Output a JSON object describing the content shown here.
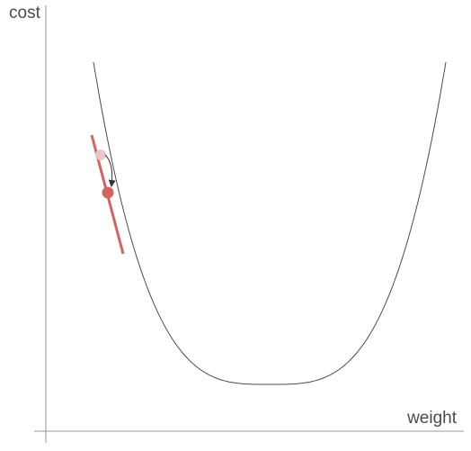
{
  "diagram": {
    "axes": {
      "x_label": "weight",
      "y_label": "cost"
    },
    "colors": {
      "axis": "#9a9a9a",
      "curve": "#4d4d4d",
      "tangent": "#d46464",
      "current_point": "#d46464",
      "previous_point": "#e8c7c7",
      "arrow": "#333333"
    },
    "elements": [
      "cost-curve",
      "tangent-line",
      "previous-point",
      "current-point",
      "step-arrow"
    ]
  }
}
